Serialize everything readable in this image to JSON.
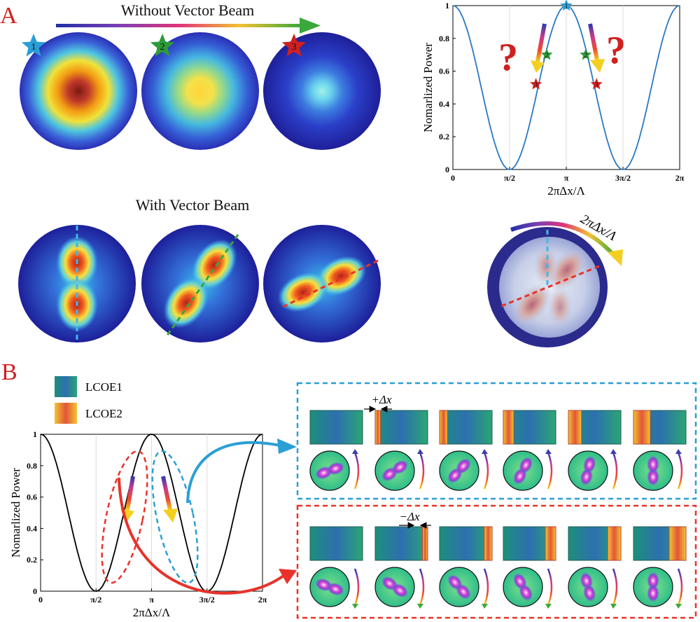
{
  "panel_a": {
    "letter": "A",
    "title_without": "Without Vector Beam",
    "title_with": "With Vector Beam",
    "star_labels": [
      "1",
      "2",
      "3"
    ],
    "question_mark": "?",
    "rotation_label": "2πΔx/Λ"
  },
  "panel_b": {
    "letter": "B",
    "legend": [
      {
        "name": "LCOE1",
        "colors": [
          "#1d8f7a",
          "#2d6fb0",
          "#2aa673"
        ]
      },
      {
        "name": "LCOE2",
        "colors": [
          "#f4c430",
          "#e2553a",
          "#f4c430"
        ]
      }
    ],
    "delta_plus": "+Δx",
    "delta_minus": "−Δx"
  },
  "chart_data": [
    {
      "type": "line",
      "panel": "A",
      "xlabel": "2πΔx/Λ",
      "ylabel": "Nomarlized Power",
      "xlim": [
        0,
        6.2832
      ],
      "ylim": [
        0,
        1
      ],
      "x_ticks": [
        "0",
        "π/2",
        "π",
        "3π/2",
        "2π"
      ],
      "y_ticks": [
        "0",
        "0.2",
        "0.4",
        "0.6",
        "0.8",
        "1"
      ],
      "function": "cos^2(x)",
      "series_color": "#2a78c2",
      "grid": "x-only",
      "markers": [
        {
          "label": "1",
          "x": 3.1416,
          "y": 1.0,
          "color": "#2a9fd6"
        },
        {
          "label": "2",
          "x": 2.6,
          "y": 0.7,
          "color": "#2e9a3a"
        },
        {
          "label": "2",
          "x": 3.68,
          "y": 0.7,
          "color": "#2e9a3a"
        },
        {
          "label": "3",
          "x": 2.3,
          "y": 0.52,
          "color": "#d0201f"
        },
        {
          "label": "3",
          "x": 3.98,
          "y": 0.52,
          "color": "#d0201f"
        }
      ]
    },
    {
      "type": "line",
      "panel": "B",
      "xlabel": "2πΔx/Λ",
      "ylabel": "Nomarlized Power",
      "xlim": [
        0,
        6.2832
      ],
      "ylim": [
        0,
        1
      ],
      "x_ticks": [
        "0",
        "π/2",
        "π",
        "3π/2",
        "2π"
      ],
      "y_ticks": [
        "0",
        "0.2",
        "0.4",
        "0.6",
        "0.8",
        "1"
      ],
      "function": "cos^2(x)",
      "series_color": "#000000",
      "grid": "x-only"
    }
  ]
}
